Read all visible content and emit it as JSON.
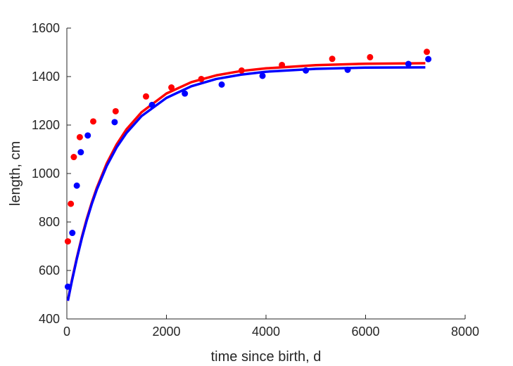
{
  "chart_data": {
    "type": "scatter",
    "xlabel": "time since birth, d",
    "ylabel": "length, cm",
    "xlim": [
      0,
      8000
    ],
    "ylim": [
      400,
      1600
    ],
    "xticks": [
      "0",
      "2000",
      "4000",
      "6000",
      "8000"
    ],
    "yticks": [
      "400",
      "600",
      "800",
      "1000",
      "1200",
      "1400",
      "1600"
    ],
    "grid": false,
    "legend": "none",
    "series": [
      {
        "kind": "points",
        "color": "#ff0000",
        "x": [
          20,
          80,
          140,
          260,
          530,
          980,
          1590,
          2100,
          2700,
          3510,
          4320,
          5330,
          6090,
          7230
        ],
        "y": [
          720,
          875,
          1068,
          1150,
          1215,
          1257,
          1318,
          1355,
          1390,
          1425,
          1448,
          1473,
          1480,
          1502
        ]
      },
      {
        "kind": "points",
        "color": "#0000ff",
        "x": [
          20,
          110,
          200,
          280,
          420,
          960,
          1710,
          2370,
          3110,
          3930,
          4800,
          5640,
          6860,
          7260
        ],
        "y": [
          533,
          755,
          950,
          1088,
          1157,
          1212,
          1283,
          1330,
          1367,
          1403,
          1425,
          1428,
          1452,
          1472
        ]
      },
      {
        "kind": "line",
        "color": "#ff0000",
        "x": [
          20,
          100,
          200,
          300,
          400,
          500,
          600,
          800,
          1000,
          1200,
          1500,
          2000,
          2500,
          3000,
          3500,
          4000,
          5000,
          6000,
          7200
        ],
        "y": [
          475,
          559,
          652,
          737,
          813,
          880,
          940,
          1041,
          1120,
          1183,
          1253,
          1330,
          1377,
          1405,
          1423,
          1434,
          1447,
          1453,
          1455
        ]
      },
      {
        "kind": "line",
        "color": "#0000ff",
        "x": [
          20,
          100,
          200,
          300,
          400,
          500,
          600,
          800,
          1000,
          1200,
          1500,
          2000,
          2500,
          3000,
          3500,
          4000,
          5000,
          6000,
          7200
        ],
        "y": [
          475,
          555,
          648,
          732,
          807,
          874,
          933,
          1031,
          1108,
          1168,
          1237,
          1312,
          1360,
          1390,
          1408,
          1420,
          1432,
          1437,
          1438
        ]
      }
    ]
  }
}
